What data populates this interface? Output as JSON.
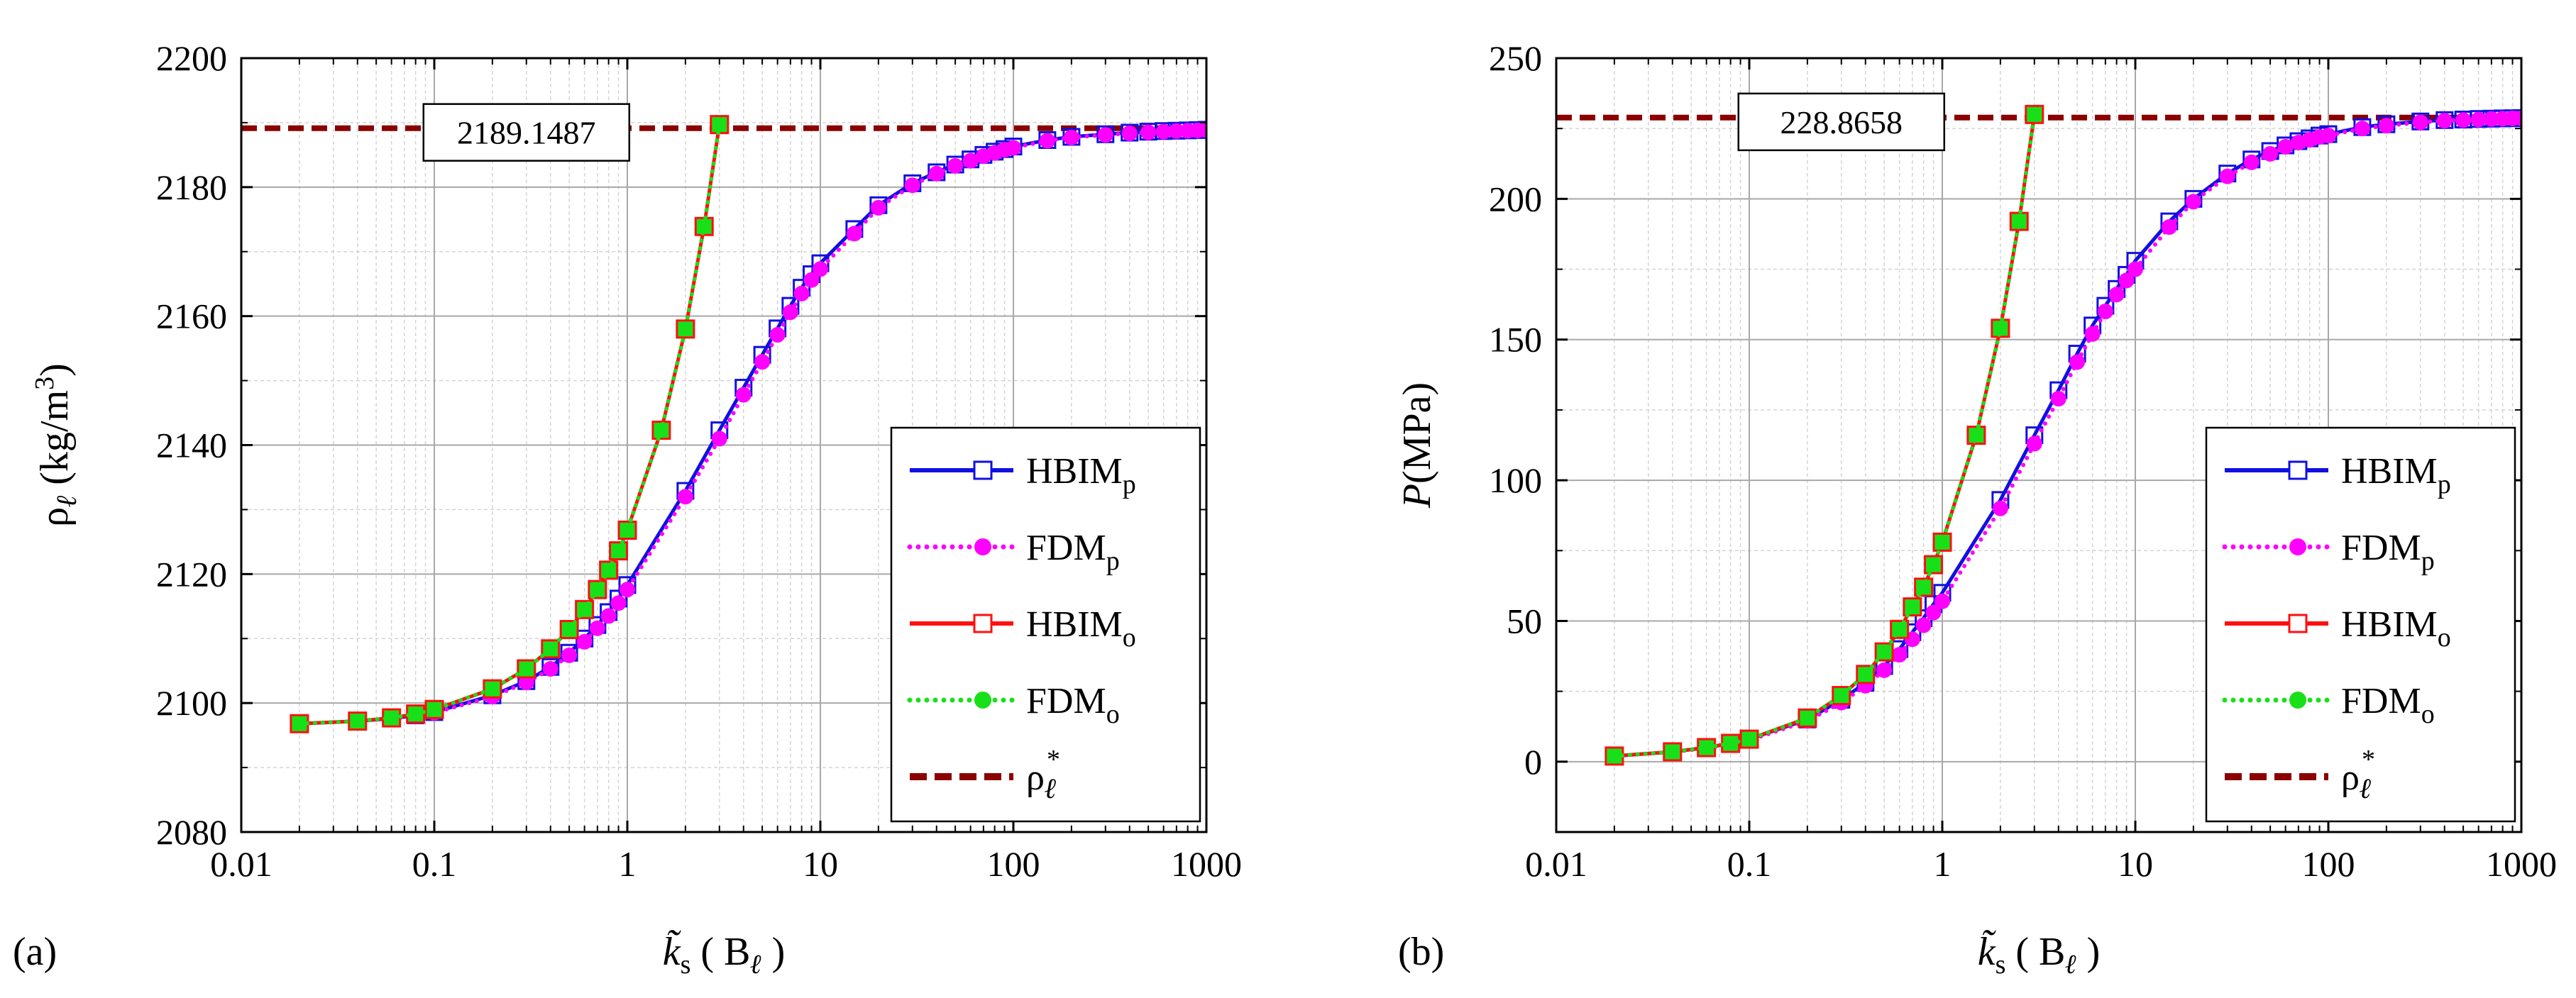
{
  "chart_data": [
    {
      "type": "line",
      "panel_label": "(a)",
      "xlabel": {
        "main": "k̃",
        "sub": "s",
        "paren_open": "( B",
        "sub2": "ℓ",
        "paren_close": ")"
      },
      "ylabel": {
        "main": "ρ",
        "sub": "ℓ",
        "rest": " (kg/m",
        "sup": "3",
        "close": ")"
      },
      "xscale": "log",
      "xlim": [
        0.01,
        1000
      ],
      "ylim": [
        2080,
        2200
      ],
      "xticks": [
        0.01,
        0.1,
        1,
        10,
        100,
        1000
      ],
      "xtick_labels": [
        "0.01",
        "0.1",
        "1",
        "10",
        "100",
        "1000"
      ],
      "yticks": [
        2080,
        2100,
        2120,
        2140,
        2160,
        2180,
        2200
      ],
      "ytick_labels": [
        "2080",
        "2100",
        "2120",
        "2140",
        "2160",
        "2180",
        "2200"
      ],
      "grid": true,
      "legend_position": "lower-right",
      "reference": {
        "value": 2189.1487,
        "label": "2189.1487",
        "label_x": 0.5
      },
      "series": [
        {
          "name": "HBIM",
          "sub": "p",
          "line": "solid",
          "color": "#1010e0",
          "marker": "open-square",
          "x": [
            0.02,
            0.04,
            0.06,
            0.08,
            0.1,
            0.2,
            0.3,
            0.4,
            0.5,
            0.6,
            0.7,
            0.8,
            0.9,
            1,
            2,
            3,
            4,
            5,
            6,
            7,
            8,
            9,
            10,
            15,
            20,
            30,
            40,
            50,
            60,
            70,
            80,
            90,
            100,
            150,
            200,
            300,
            400,
            500,
            600,
            700,
            800,
            900,
            1000
          ],
          "y": [
            2096.8,
            2097.2,
            2097.6,
            2098.1,
            2098.6,
            2101.2,
            2103.4,
            2105.6,
            2107.8,
            2110.0,
            2112.1,
            2114.1,
            2116.2,
            2118.3,
            2132.9,
            2142.3,
            2148.9,
            2154.0,
            2158.1,
            2161.6,
            2164.4,
            2166.5,
            2168.2,
            2173.5,
            2177.2,
            2180.6,
            2182.3,
            2183.5,
            2184.3,
            2185.0,
            2185.5,
            2185.9,
            2186.3,
            2187.3,
            2187.8,
            2188.2,
            2188.45,
            2188.6,
            2188.7,
            2188.75,
            2188.8,
            2188.85,
            2188.9
          ]
        },
        {
          "name": "FDM",
          "sub": "p",
          "line": "dotted",
          "color": "#ff00ff",
          "marker": "filled-circle",
          "x": [
            0.02,
            0.04,
            0.06,
            0.08,
            0.1,
            0.2,
            0.3,
            0.4,
            0.5,
            0.6,
            0.7,
            0.8,
            0.9,
            1,
            2,
            3,
            4,
            5,
            6,
            7,
            8,
            9,
            10,
            15,
            20,
            30,
            40,
            50,
            60,
            70,
            80,
            90,
            100,
            150,
            200,
            300,
            400,
            500,
            600,
            700,
            800,
            900,
            1000
          ],
          "y": [
            2096.8,
            2097.2,
            2097.6,
            2098.0,
            2098.5,
            2101.0,
            2103.2,
            2105.3,
            2107.4,
            2109.5,
            2111.6,
            2113.5,
            2115.5,
            2117.6,
            2132.0,
            2141.0,
            2147.8,
            2152.9,
            2157.1,
            2160.6,
            2163.5,
            2165.6,
            2167.3,
            2172.8,
            2176.8,
            2180.3,
            2182.1,
            2183.3,
            2184.1,
            2184.8,
            2185.3,
            2185.8,
            2186.1,
            2187.2,
            2187.7,
            2188.1,
            2188.35,
            2188.5,
            2188.6,
            2188.7,
            2188.75,
            2188.8,
            2188.85
          ]
        },
        {
          "name": "HBIM",
          "sub": "o",
          "line": "solid",
          "color": "#ff1010",
          "marker": "open-square",
          "x": [
            0.02,
            0.04,
            0.06,
            0.08,
            0.1,
            0.2,
            0.3,
            0.4,
            0.5,
            0.6,
            0.7,
            0.8,
            0.9,
            1,
            1.5,
            2,
            2.5,
            3
          ],
          "y": [
            2096.8,
            2097.2,
            2097.7,
            2098.3,
            2099.0,
            2102.2,
            2105.3,
            2108.4,
            2111.4,
            2114.5,
            2117.6,
            2120.6,
            2123.6,
            2126.8,
            2142.3,
            2158.0,
            2173.9,
            2189.7
          ]
        },
        {
          "name": "FDM",
          "sub": "o",
          "line": "dotted",
          "color": "#18e018",
          "marker": "filled-circle",
          "x": [
            0.02,
            0.04,
            0.06,
            0.08,
            0.1,
            0.2,
            0.3,
            0.4,
            0.5,
            0.6,
            0.7,
            0.8,
            0.9,
            1,
            1.5,
            2,
            2.5,
            3
          ],
          "y": [
            2096.8,
            2097.2,
            2097.7,
            2098.3,
            2099.0,
            2102.2,
            2105.3,
            2108.4,
            2111.4,
            2114.5,
            2117.6,
            2120.6,
            2123.6,
            2126.8,
            2142.3,
            2158.0,
            2173.9,
            2189.7
          ]
        },
        {
          "name": "ρ",
          "sub": "ℓ",
          "sup": "*",
          "line": "dashed",
          "color": "#8b0000",
          "marker": "none",
          "x": [
            0.01,
            1000
          ],
          "y": [
            2189.1487,
            2189.1487
          ]
        }
      ]
    },
    {
      "type": "line",
      "panel_label": "(b)",
      "xlabel": {
        "main": "k̃",
        "sub": "s",
        "paren_open": "( B",
        "sub2": "ℓ",
        "paren_close": ")"
      },
      "ylabel": {
        "main": "P",
        "sub": "",
        "rest": "(MPa)",
        "sup": "",
        "close": ""
      },
      "xscale": "log",
      "xlim": [
        0.01,
        1000
      ],
      "ylim": [
        -25,
        250
      ],
      "xticks": [
        0.01,
        0.1,
        1,
        10,
        100,
        1000
      ],
      "xtick_labels": [
        "0.01",
        "0.1",
        "1",
        "10",
        "100",
        "1000"
      ],
      "yticks": [
        0,
        50,
        100,
        150,
        200,
        250
      ],
      "ytick_labels": [
        "0",
        "50",
        "100",
        "150",
        "200",
        "250"
      ],
      "grid": true,
      "legend_position": "lower-right",
      "reference": {
        "value": 228.8658,
        "label": "228.8658",
        "label_x": 0.5
      },
      "series": [
        {
          "name": "HBIM",
          "sub": "p",
          "line": "solid",
          "color": "#1010e0",
          "marker": "open-square",
          "x": [
            0.02,
            0.04,
            0.06,
            0.08,
            0.1,
            0.2,
            0.3,
            0.4,
            0.5,
            0.6,
            0.7,
            0.8,
            0.9,
            1,
            2,
            3,
            4,
            5,
            6,
            7,
            8,
            9,
            10,
            15,
            20,
            30,
            40,
            50,
            60,
            70,
            80,
            90,
            100,
            150,
            200,
            300,
            400,
            500,
            600,
            700,
            800,
            900,
            1000
          ],
          "y": [
            2.0,
            3.5,
            5.0,
            6.5,
            8.0,
            15.0,
            22.0,
            28.0,
            34.0,
            40.0,
            46.0,
            51.0,
            56.0,
            60.0,
            93.0,
            116.0,
            132.0,
            145.0,
            155.0,
            162.0,
            168.0,
            173.0,
            178.0,
            192.0,
            200.0,
            209.0,
            214.0,
            217.0,
            219.0,
            220.5,
            221.5,
            222.5,
            223.0,
            225.5,
            226.5,
            227.5,
            228.0,
            228.2,
            228.4,
            228.5,
            228.6,
            228.65,
            228.7
          ]
        },
        {
          "name": "FDM",
          "sub": "p",
          "line": "dotted",
          "color": "#ff00ff",
          "marker": "filled-circle",
          "x": [
            0.02,
            0.04,
            0.06,
            0.08,
            0.1,
            0.2,
            0.3,
            0.4,
            0.5,
            0.6,
            0.7,
            0.8,
            0.9,
            1,
            2,
            3,
            4,
            5,
            6,
            7,
            8,
            9,
            10,
            15,
            20,
            30,
            40,
            50,
            60,
            70,
            80,
            90,
            100,
            150,
            200,
            300,
            400,
            500,
            600,
            700,
            800,
            900,
            1000
          ],
          "y": [
            2.0,
            3.4,
            4.8,
            6.2,
            7.6,
            14.5,
            21.0,
            27.0,
            32.5,
            38.0,
            43.5,
            48.5,
            53.0,
            57.0,
            90.0,
            113.0,
            129.0,
            142.0,
            152.0,
            160.0,
            166.0,
            171.0,
            175.0,
            190.0,
            199.0,
            208.0,
            213.0,
            216.0,
            218.5,
            220.0,
            221.0,
            222.0,
            222.5,
            225.0,
            226.0,
            227.2,
            227.8,
            228.0,
            228.2,
            228.4,
            228.5,
            228.6,
            228.65
          ]
        },
        {
          "name": "HBIM",
          "sub": "o",
          "line": "solid",
          "color": "#ff1010",
          "marker": "open-square",
          "x": [
            0.02,
            0.04,
            0.06,
            0.08,
            0.1,
            0.2,
            0.3,
            0.4,
            0.5,
            0.6,
            0.7,
            0.8,
            0.9,
            1,
            1.5,
            2,
            2.5,
            3
          ],
          "y": [
            2.0,
            3.5,
            5.0,
            6.5,
            8.0,
            15.5,
            23.5,
            31.0,
            39.0,
            47.0,
            55.0,
            62.0,
            70.0,
            78.0,
            116.0,
            154.0,
            192.0,
            230.0
          ]
        },
        {
          "name": "FDM",
          "sub": "o",
          "line": "dotted",
          "color": "#18e018",
          "marker": "filled-circle",
          "x": [
            0.02,
            0.04,
            0.06,
            0.08,
            0.1,
            0.2,
            0.3,
            0.4,
            0.5,
            0.6,
            0.7,
            0.8,
            0.9,
            1,
            1.5,
            2,
            2.5,
            3
          ],
          "y": [
            2.0,
            3.5,
            5.0,
            6.5,
            8.0,
            15.5,
            23.5,
            31.0,
            39.0,
            47.0,
            55.0,
            62.0,
            70.0,
            78.0,
            116.0,
            154.0,
            192.0,
            230.0
          ]
        },
        {
          "name": "ρ",
          "sub": "ℓ",
          "sup": "*",
          "line": "dashed",
          "color": "#8b0000",
          "marker": "none",
          "x": [
            0.01,
            1000
          ],
          "y": [
            228.8658,
            228.8658
          ]
        }
      ]
    }
  ]
}
